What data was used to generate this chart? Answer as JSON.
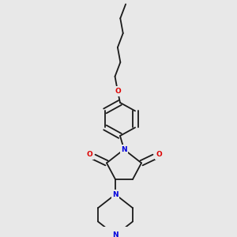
{
  "bg_color": "#e8e8e8",
  "bond_color": "#1a1a1a",
  "N_color": "#0000dd",
  "O_color": "#dd0000",
  "bond_lw": 1.3,
  "dbo": 0.008,
  "fs": 6.5,
  "figsize": [
    3.0,
    3.0
  ],
  "dpi": 100,
  "xlim": [
    0,
    300
  ],
  "ylim": [
    0,
    300
  ]
}
